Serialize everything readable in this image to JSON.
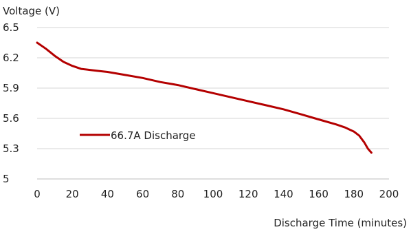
{
  "chart_data": {
    "type": "line",
    "title": "",
    "xlabel": "Discharge Time (minutes)",
    "ylabel": "Voltage (V)",
    "xlim": [
      0,
      200
    ],
    "ylim": [
      5,
      6.5
    ],
    "x_ticks": [
      0,
      20,
      40,
      60,
      80,
      100,
      120,
      140,
      160,
      180,
      200
    ],
    "y_ticks": [
      5,
      5.3,
      5.6,
      5.9,
      6.2,
      6.5
    ],
    "y_tick_labels": [
      "5",
      "5.3",
      "5.6",
      "5.9",
      "6.2",
      "6.5"
    ],
    "grid": "horizontal",
    "legend": "left-lower",
    "series": [
      {
        "name": "66.7A Discharge",
        "color": "#b40000",
        "x": [
          0,
          5,
          10,
          15,
          20,
          25,
          30,
          35,
          40,
          50,
          60,
          70,
          80,
          90,
          100,
          110,
          120,
          130,
          140,
          150,
          160,
          170,
          175,
          180,
          183,
          186,
          188,
          190
        ],
        "y": [
          6.35,
          6.29,
          6.22,
          6.16,
          6.12,
          6.09,
          6.08,
          6.07,
          6.06,
          6.03,
          6.0,
          5.96,
          5.93,
          5.89,
          5.85,
          5.81,
          5.77,
          5.73,
          5.69,
          5.64,
          5.59,
          5.54,
          5.51,
          5.47,
          5.43,
          5.36,
          5.3,
          5.26
        ]
      }
    ]
  }
}
